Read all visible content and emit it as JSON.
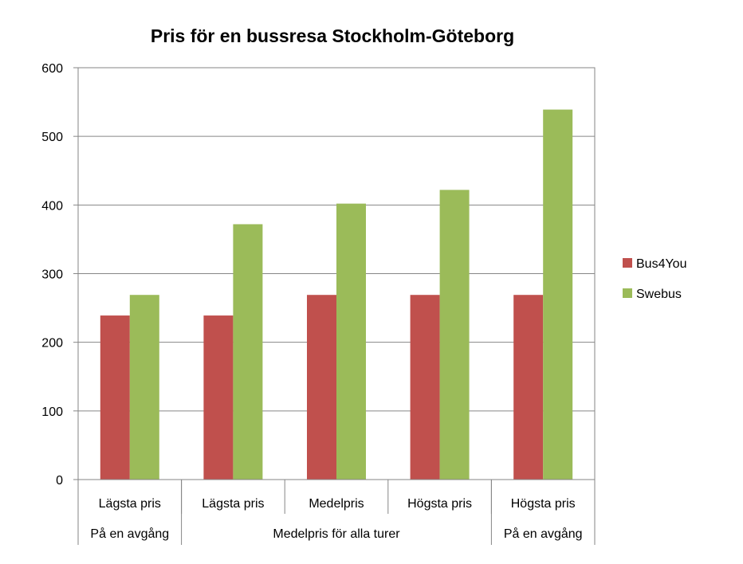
{
  "chart_data": {
    "type": "bar",
    "title": "Pris för en bussresa Stockholm-Göteborg",
    "xlabel": "",
    "ylabel": "",
    "ylim": [
      0,
      600
    ],
    "yticks": [
      0,
      100,
      200,
      300,
      400,
      500,
      600
    ],
    "grid": true,
    "legend_position": "right",
    "categories": [
      "Lägsta pris",
      "Lägsta pris",
      "Medelpris",
      "Högsta pris",
      "Högsta pris"
    ],
    "category_groups": [
      {
        "label": "På en avgång",
        "span": 1
      },
      {
        "label": "Medelpris för alla turer",
        "span": 3
      },
      {
        "label": "På en avgång",
        "span": 1
      }
    ],
    "series": [
      {
        "name": "Bus4You",
        "color": "#c0504d",
        "values": [
          239,
          239,
          269,
          269,
          269
        ]
      },
      {
        "name": "Swebus",
        "color": "#9bbb59",
        "values": [
          269,
          372,
          402,
          422,
          539
        ]
      }
    ]
  }
}
